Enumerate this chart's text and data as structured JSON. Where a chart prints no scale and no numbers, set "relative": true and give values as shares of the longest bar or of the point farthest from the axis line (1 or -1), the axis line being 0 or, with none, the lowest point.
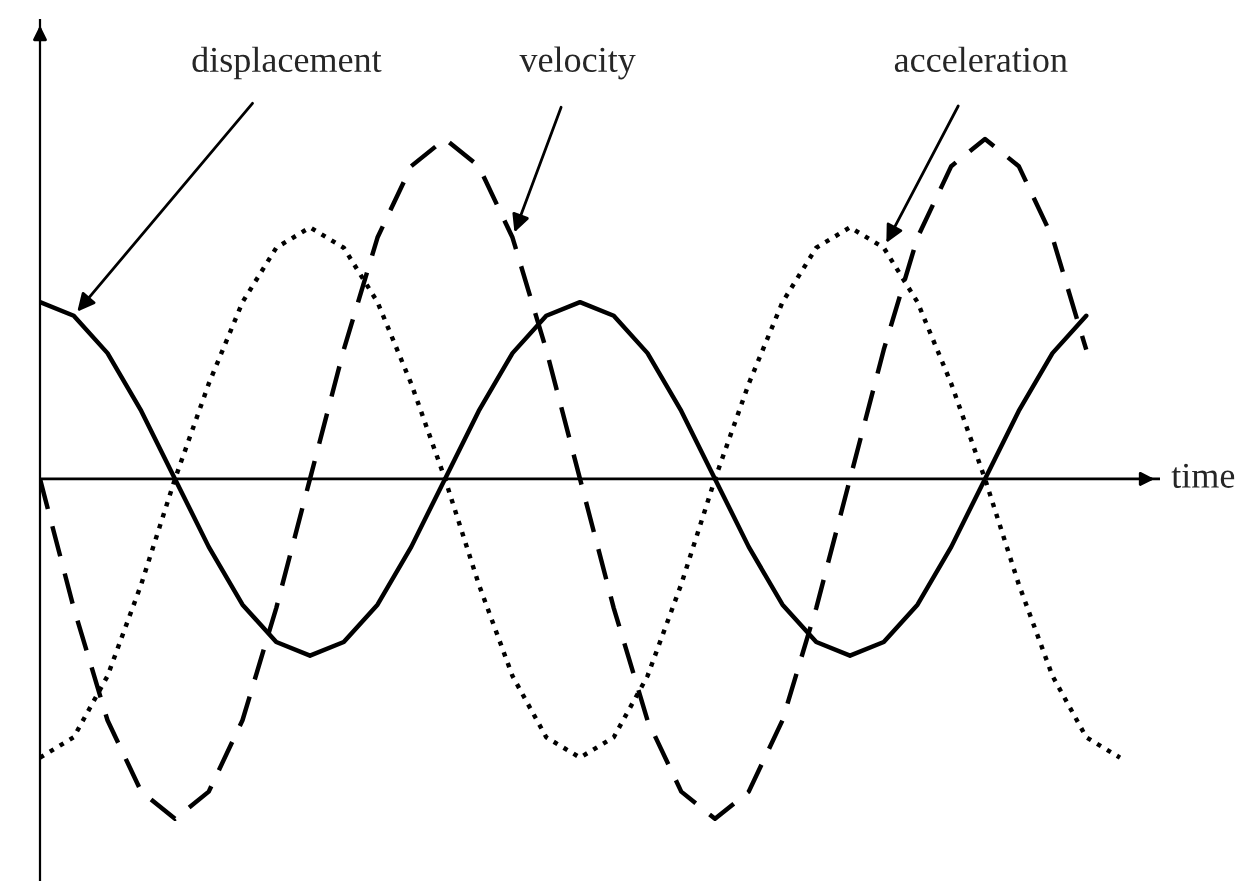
{
  "chart_data": {
    "type": "line",
    "relative": true,
    "xlabel": "time",
    "legend": false,
    "categories": [
      null,
      null,
      null,
      null,
      null,
      null,
      null,
      null,
      null,
      null,
      null,
      null,
      null,
      null,
      null,
      null,
      null,
      null,
      null,
      null,
      null,
      null,
      null,
      null,
      null,
      null,
      null,
      null,
      null,
      null,
      null,
      null,
      null
    ],
    "series": [
      {
        "color": "#000000",
        "line_style": "solid",
        "values": [
          0.52,
          0.48,
          0.37,
          0.2,
          0,
          -0.2,
          -0.37,
          -0.48,
          -0.52,
          -0.48,
          -0.37,
          -0.2,
          0,
          0.2,
          0.37,
          0.48,
          0.52,
          0.48,
          0.37,
          0.2,
          0,
          -0.2,
          -0.37,
          -0.48,
          -0.52,
          -0.48,
          -0.37,
          -0.2,
          0,
          0.2,
          0.37,
          0.48,
          null
        ]
      },
      {
        "color": "#000000",
        "line_style": "dashed",
        "values": [
          0,
          -0.38,
          -0.71,
          -0.92,
          -1,
          -0.92,
          -0.71,
          -0.38,
          0,
          0.38,
          0.71,
          0.92,
          1,
          0.92,
          0.71,
          0.38,
          0,
          -0.38,
          -0.71,
          -0.92,
          -1,
          -0.92,
          -0.71,
          -0.38,
          0,
          0.38,
          0.71,
          0.92,
          1,
          0.92,
          0.71,
          0.38,
          null
        ]
      },
      {
        "color": "#000000",
        "line_style": "dotted",
        "values": [
          -0.82,
          -0.76,
          -0.58,
          -0.31,
          0,
          0.28,
          0.52,
          0.68,
          0.74,
          0.68,
          0.52,
          0.28,
          0,
          -0.31,
          -0.58,
          -0.76,
          -0.82,
          -0.76,
          -0.58,
          -0.31,
          0,
          0.28,
          0.52,
          0.68,
          0.74,
          0.68,
          0.52,
          0.28,
          0,
          -0.31,
          -0.58,
          -0.76,
          -0.82
        ]
      }
    ],
    "annotations": [
      "displacement",
      "velocity",
      "acceleration"
    ]
  }
}
